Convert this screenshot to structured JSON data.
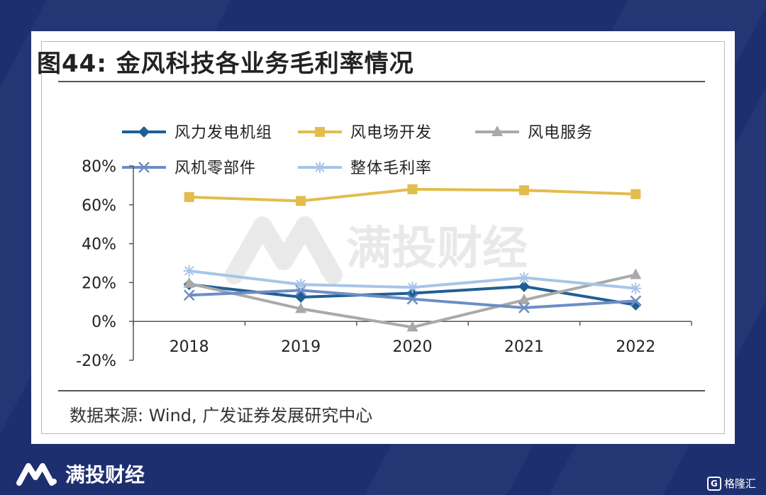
{
  "figure": {
    "title": "图44:  金风科技各业务毛利率情况",
    "source": "数据来源:  Wind,  广发证券发展研究中心"
  },
  "watermark": {
    "text": "满投财经",
    "icon": "brand-m-logo"
  },
  "footer": {
    "brand_text": "满投财经",
    "corner_badge_text": "格隆汇",
    "corner_badge_icon": "G"
  },
  "colors": {
    "background": "#1d2f6e",
    "wind_turbine": "#1f5f96",
    "wind_farm": "#e3bc4d",
    "wind_service": "#a9a9a9",
    "parts": "#6d8ec4",
    "overall": "#a8c4e8"
  },
  "chart_data": {
    "type": "line",
    "title": "",
    "xlabel": "",
    "ylabel": "",
    "categories": [
      "2018",
      "2019",
      "2020",
      "2021",
      "2022"
    ],
    "ylim": [
      -20,
      80
    ],
    "yticks": [
      -20,
      0,
      20,
      40,
      60,
      80
    ],
    "ytick_labels": [
      "-20%",
      "0%",
      "20%",
      "40%",
      "60%",
      "80%"
    ],
    "grid": false,
    "legend_position": "top",
    "series": [
      {
        "name": "风力发电机组",
        "values": [
          19,
          12.5,
          14.5,
          18,
          8.5
        ],
        "color": "#1f5f96",
        "marker": "diamond"
      },
      {
        "name": "风电场开发",
        "values": [
          64,
          62,
          68,
          67.5,
          65.5
        ],
        "color": "#e3bc4d",
        "marker": "square"
      },
      {
        "name": "风电服务",
        "values": [
          19.5,
          6.5,
          -3,
          11,
          24
        ],
        "color": "#a9a9a9",
        "marker": "triangle"
      },
      {
        "name": "风机零部件",
        "values": [
          13.5,
          16,
          11.5,
          7,
          10.5
        ],
        "color": "#6d8ec4",
        "marker": "x"
      },
      {
        "name": "整体毛利率",
        "values": [
          26,
          19,
          17.5,
          22.5,
          17
        ],
        "color": "#a8c4e8",
        "marker": "star"
      }
    ]
  }
}
